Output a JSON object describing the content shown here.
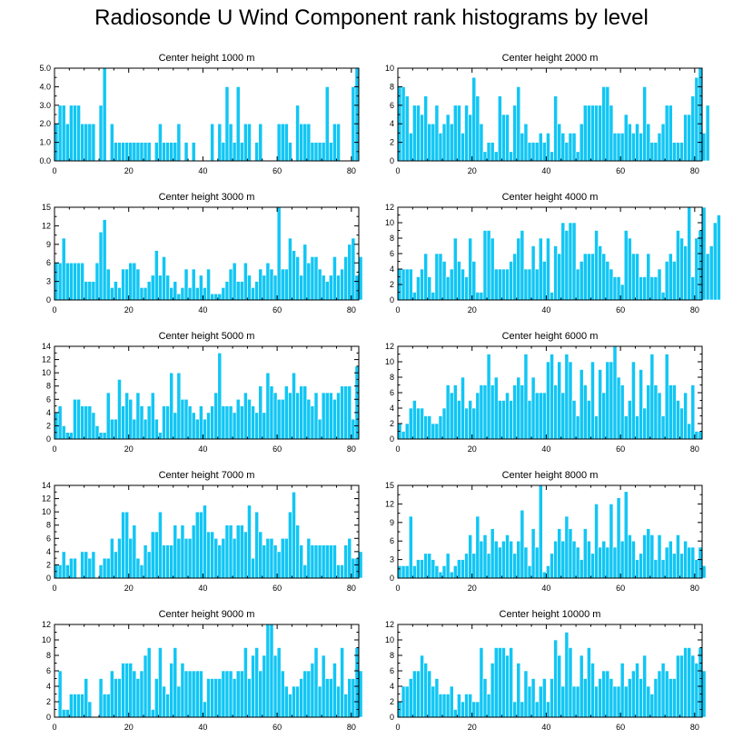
{
  "title": "Radiosonde U Wind Component rank histograms by level",
  "colors": {
    "bar": "#11c6f4",
    "bar_stroke": "#ffffff",
    "axis": "#000000"
  },
  "chart_data": [
    {
      "type": "bar",
      "title": "Center height 1000 m",
      "xlim": [
        0,
        82
      ],
      "ylim": [
        0,
        5
      ],
      "xticks": [
        0,
        20,
        40,
        60,
        80
      ],
      "yticks": [
        0,
        1,
        2,
        3,
        4,
        5
      ],
      "ytick_labels": [
        "0.0",
        "1.0",
        "2.0",
        "3.0",
        "4.0",
        "5.0"
      ],
      "values": [
        2,
        3,
        3,
        2,
        3,
        3,
        3,
        2,
        2,
        2,
        2,
        0,
        3,
        5,
        0,
        2,
        1,
        1,
        1,
        1,
        1,
        1,
        1,
        1,
        1,
        1,
        0,
        1,
        2,
        1,
        1,
        1,
        1,
        2,
        0,
        1,
        0,
        1,
        0,
        0,
        0,
        0,
        2,
        0,
        2,
        1,
        4,
        2,
        1,
        4,
        1,
        2,
        2,
        0,
        1,
        2,
        0,
        0,
        0,
        0,
        2,
        2,
        2,
        1,
        0,
        3,
        2,
        2,
        2,
        1,
        1,
        1,
        1,
        4,
        1,
        2,
        2,
        0,
        0,
        0,
        4,
        5
      ]
    },
    {
      "type": "bar",
      "title": "Center height 2000 m",
      "xlim": [
        0,
        82
      ],
      "ylim": [
        0,
        10
      ],
      "xticks": [
        0,
        20,
        40,
        60,
        80
      ],
      "yticks": [
        0,
        2,
        4,
        6,
        8,
        10
      ],
      "ytick_labels": [
        "0",
        "2",
        "4",
        "6",
        "8",
        "10"
      ],
      "values": [
        8,
        8,
        7,
        3,
        6,
        6,
        5,
        7,
        4,
        4,
        6,
        3,
        4,
        5,
        4,
        6,
        6,
        3,
        6,
        5,
        9,
        7,
        4,
        1,
        2,
        2,
        1,
        7,
        5,
        5,
        1,
        6,
        8,
        3,
        4,
        2,
        2,
        2,
        3,
        2,
        3,
        1,
        7,
        4,
        3,
        2,
        3,
        3,
        1,
        4,
        6,
        6,
        6,
        6,
        6,
        8,
        8,
        6,
        3,
        3,
        3,
        5,
        4,
        3,
        4,
        3,
        8,
        4,
        2,
        2,
        3,
        4,
        6,
        6,
        2,
        2,
        2,
        5,
        5,
        7,
        9,
        10,
        3,
        6
      ]
    },
    {
      "type": "bar",
      "title": "Center height 3000 m",
      "xlim": [
        0,
        82
      ],
      "ylim": [
        0,
        15
      ],
      "xticks": [
        0,
        20,
        40,
        60,
        80
      ],
      "yticks": [
        0,
        3,
        6,
        9,
        12,
        15
      ],
      "ytick_labels": [
        "0",
        "3",
        "6",
        "9",
        "12",
        "15"
      ],
      "values": [
        6,
        6,
        10,
        6,
        6,
        6,
        6,
        6,
        3,
        3,
        3,
        6,
        11,
        13,
        5,
        2,
        3,
        2,
        5,
        5,
        6,
        6,
        5,
        2,
        2,
        3,
        4,
        8,
        4,
        7,
        4,
        2,
        3,
        1,
        2,
        5,
        2,
        5,
        2,
        4,
        2,
        5,
        1,
        1,
        1,
        2,
        3,
        5,
        6,
        3,
        3,
        6,
        4,
        2,
        3,
        5,
        4,
        6,
        5,
        4,
        15,
        5,
        5,
        10,
        8,
        7,
        4,
        9,
        6,
        7,
        7,
        5,
        4,
        3,
        4,
        7,
        4,
        5,
        7,
        9,
        10,
        4,
        7
      ]
    },
    {
      "type": "bar",
      "title": "Center height 4000 m",
      "xlim": [
        0,
        82
      ],
      "ylim": [
        0,
        12
      ],
      "xticks": [
        0,
        20,
        40,
        60,
        80
      ],
      "yticks": [
        0,
        2,
        4,
        6,
        8,
        10,
        12
      ],
      "ytick_labels": [
        "0",
        "2",
        "4",
        "6",
        "8",
        "10",
        "12"
      ],
      "values": [
        4,
        4,
        4,
        4,
        1,
        3,
        4,
        6,
        3,
        1,
        6,
        6,
        5,
        3,
        4,
        8,
        5,
        4,
        3,
        8,
        5,
        1,
        1,
        9,
        9,
        8,
        4,
        4,
        4,
        4,
        5,
        6,
        8,
        9,
        4,
        4,
        7,
        4,
        8,
        5,
        8,
        1,
        7,
        6,
        10,
        9,
        10,
        10,
        4,
        5,
        6,
        6,
        6,
        9,
        7,
        6,
        5,
        4,
        3,
        3,
        2,
        9,
        8,
        6,
        6,
        3,
        3,
        6,
        3,
        3,
        4,
        1,
        5,
        6,
        5,
        9,
        8,
        7,
        12,
        3,
        8,
        9,
        12,
        6,
        7,
        10,
        11
      ]
    },
    {
      "type": "bar",
      "title": "Center height 5000 m",
      "xlim": [
        0,
        82
      ],
      "ylim": [
        0,
        14
      ],
      "xticks": [
        0,
        20,
        40,
        60,
        80
      ],
      "yticks": [
        0,
        2,
        4,
        6,
        8,
        10,
        12,
        14
      ],
      "ytick_labels": [
        "0",
        "2",
        "4",
        "6",
        "8",
        "10",
        "12",
        "14"
      ],
      "values": [
        4,
        5,
        2,
        1,
        1,
        6,
        6,
        5,
        5,
        5,
        4,
        2,
        1,
        1,
        7,
        3,
        3,
        9,
        5,
        7,
        6,
        3,
        7,
        5,
        3,
        5,
        7,
        3,
        1,
        5,
        5,
        10,
        4,
        10,
        6,
        6,
        5,
        4,
        3,
        5,
        3,
        4,
        5,
        7,
        13,
        5,
        5,
        5,
        4,
        6,
        5,
        7,
        6,
        5,
        4,
        8,
        4,
        10,
        8,
        7,
        6,
        6,
        8,
        7,
        10,
        7,
        8,
        8,
        6,
        5,
        7,
        3,
        7,
        7,
        7,
        6,
        7,
        8,
        8,
        8,
        3,
        11
      ]
    },
    {
      "type": "bar",
      "title": "Center height 6000 m",
      "xlim": [
        0,
        82
      ],
      "ylim": [
        0,
        12
      ],
      "xticks": [
        0,
        20,
        40,
        60,
        80
      ],
      "yticks": [
        0,
        2,
        4,
        6,
        8,
        10,
        12
      ],
      "ytick_labels": [
        "0",
        "2",
        "4",
        "6",
        "8",
        "10",
        "12"
      ],
      "values": [
        2,
        1,
        2,
        4,
        5,
        4,
        4,
        3,
        3,
        2,
        2,
        3,
        4,
        7,
        6,
        7,
        5,
        8,
        4,
        5,
        4,
        6,
        7,
        7,
        11,
        7,
        8,
        5,
        5,
        6,
        5,
        7,
        8,
        7,
        11,
        5,
        8,
        6,
        6,
        6,
        10,
        11,
        7,
        10,
        6,
        11,
        10,
        5,
        3,
        9,
        7,
        5,
        10,
        3,
        9,
        6,
        10,
        10,
        12,
        8,
        7,
        3,
        5,
        10,
        3,
        9,
        4,
        7,
        11,
        7,
        6,
        3,
        11,
        7,
        7,
        5,
        4,
        6,
        2,
        7,
        1,
        1
      ]
    },
    {
      "type": "bar",
      "title": "Center height 7000 m",
      "xlim": [
        0,
        82
      ],
      "ylim": [
        0,
        14
      ],
      "xticks": [
        0,
        20,
        40,
        60,
        80
      ],
      "yticks": [
        0,
        2,
        4,
        6,
        8,
        10,
        12,
        14
      ],
      "ytick_labels": [
        "0",
        "2",
        "4",
        "6",
        "8",
        "10",
        "12",
        "14"
      ],
      "values": [
        2,
        2,
        4,
        2,
        3,
        3,
        0,
        4,
        4,
        3,
        4,
        0,
        2,
        3,
        3,
        6,
        4,
        6,
        10,
        10,
        6,
        8,
        3,
        2,
        5,
        4,
        7,
        7,
        10,
        5,
        5,
        5,
        8,
        6,
        8,
        6,
        6,
        8,
        10,
        10,
        11,
        7,
        7,
        6,
        5,
        6,
        8,
        8,
        6,
        8,
        8,
        7,
        11,
        3,
        10,
        7,
        5,
        6,
        6,
        5,
        4,
        6,
        6,
        10,
        13,
        8,
        5,
        2,
        6,
        5,
        5,
        5,
        5,
        5,
        5,
        5,
        2,
        2,
        5,
        6,
        3,
        3,
        4
      ]
    },
    {
      "type": "bar",
      "title": "Center height 8000 m",
      "xlim": [
        0,
        82
      ],
      "ylim": [
        0,
        15
      ],
      "xticks": [
        0,
        20,
        40,
        60,
        80
      ],
      "yticks": [
        0,
        3,
        6,
        9,
        12,
        15
      ],
      "ytick_labels": [
        "0",
        "3",
        "6",
        "9",
        "12",
        "15"
      ],
      "values": [
        2,
        2,
        2,
        10,
        2,
        3,
        3,
        4,
        4,
        3,
        2,
        1,
        2,
        4,
        1,
        2,
        3,
        3,
        4,
        7,
        4,
        10,
        6,
        7,
        4,
        8,
        6,
        5,
        6,
        7,
        6,
        4,
        6,
        11,
        5,
        2,
        8,
        5,
        15,
        1,
        2,
        4,
        6,
        8,
        6,
        10,
        8,
        6,
        5,
        3,
        8,
        6,
        4,
        12,
        5,
        6,
        5,
        12,
        5,
        13,
        6,
        14,
        7,
        6,
        3,
        4,
        7,
        8,
        7,
        3,
        7,
        3,
        5,
        6,
        4,
        7,
        4,
        6,
        5,
        5,
        3,
        5,
        2
      ]
    },
    {
      "type": "bar",
      "title": "Center height 9000 m",
      "xlim": [
        0,
        82
      ],
      "ylim": [
        0,
        12
      ],
      "xticks": [
        0,
        20,
        40,
        60,
        80
      ],
      "yticks": [
        0,
        2,
        4,
        6,
        8,
        10,
        12
      ],
      "ytick_labels": [
        "0",
        "2",
        "4",
        "6",
        "8",
        "10",
        "12"
      ],
      "values": [
        0,
        6,
        1,
        1,
        3,
        3,
        3,
        3,
        5,
        2,
        0,
        0,
        5,
        3,
        3,
        6,
        5,
        5,
        7,
        7,
        7,
        6,
        5,
        6,
        8,
        9,
        1,
        5,
        9,
        4,
        3,
        7,
        9,
        4,
        7,
        6,
        6,
        6,
        6,
        6,
        2,
        5,
        5,
        5,
        5,
        6,
        6,
        6,
        5,
        6,
        6,
        9,
        5,
        8,
        9,
        6,
        8,
        12,
        12,
        8,
        9,
        6,
        4,
        3,
        4,
        4,
        5,
        6,
        6,
        7,
        9,
        4,
        8,
        5,
        5,
        7,
        4,
        9,
        3,
        5,
        5,
        9,
        6
      ]
    },
    {
      "type": "bar",
      "title": "Center height 10000 m",
      "xlim": [
        0,
        82
      ],
      "ylim": [
        0,
        12
      ],
      "xticks": [
        0,
        20,
        40,
        60,
        80
      ],
      "yticks": [
        0,
        2,
        4,
        6,
        8,
        10,
        12
      ],
      "ytick_labels": [
        "0",
        "2",
        "4",
        "6",
        "8",
        "10",
        "12"
      ],
      "values": [
        2,
        4,
        4,
        5,
        6,
        6,
        8,
        7,
        6,
        4,
        5,
        3,
        3,
        3,
        4,
        1,
        3,
        2,
        3,
        3,
        2,
        2,
        9,
        5,
        3,
        7,
        9,
        9,
        9,
        8,
        9,
        2,
        7,
        2,
        6,
        4,
        5,
        2,
        4,
        5,
        2,
        5,
        10,
        8,
        4,
        11,
        9,
        4,
        4,
        8,
        5,
        9,
        7,
        4,
        5,
        6,
        6,
        5,
        4,
        4,
        7,
        4,
        5,
        6,
        7,
        5,
        8,
        4,
        3,
        5,
        6,
        7,
        6,
        5,
        5,
        8,
        8,
        9,
        9,
        8,
        7,
        9,
        6
      ]
    }
  ]
}
